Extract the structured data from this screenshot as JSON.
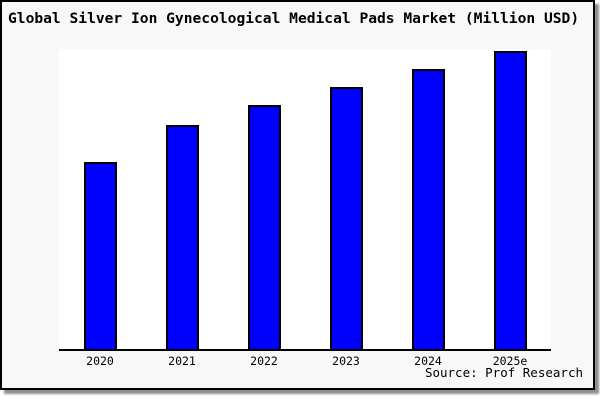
{
  "window": {
    "background_color": "#f8f8f8",
    "plot_background_color": "#ffffff",
    "border_color": "#000000",
    "shadow_color": "#8f8f8f"
  },
  "chart_data": {
    "type": "bar",
    "title": "Global Silver Ion Gynecological Medical Pads Market (Million USD)",
    "categories": [
      "2020",
      "2021",
      "2022",
      "2023",
      "2024",
      "2025e"
    ],
    "values": [
      62.8,
      75.1,
      81.7,
      87.8,
      93.9,
      100
    ],
    "values_note": "no y-axis tick labels visible; values estimated as bar heights normalized to 2025e = 100",
    "bar_heights_pct_of_plot": [
      62.4,
      74.6,
      81.2,
      87.3,
      93.3,
      99.4
    ],
    "xlabel": "",
    "ylabel": "",
    "ylim": [
      0,
      100.6
    ],
    "grid": false,
    "legend": "none",
    "y_axis_ticks_visible": false,
    "bar_color": "#0000ff",
    "bar_outline_color": "#000000",
    "annotation": "Source: Prof Research"
  }
}
